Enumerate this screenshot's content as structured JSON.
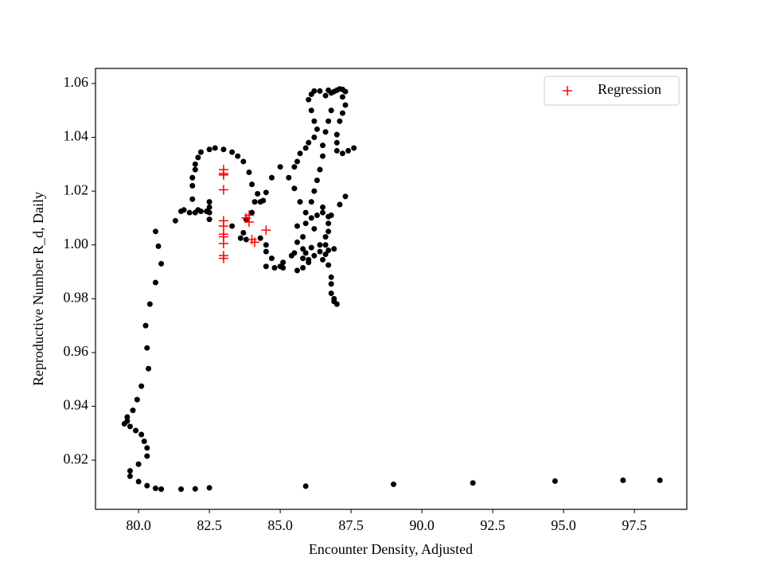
{
  "chart_data": {
    "type": "scatter",
    "xlabel": "Encounter Density, Adjusted",
    "ylabel": "Reproductive Number R_d, Daily",
    "xlim": [
      78.48,
      99.35
    ],
    "ylim": [
      0.9017,
      1.0656
    ],
    "xticks": [
      {
        "value": 80,
        "label": "80.0"
      },
      82.5,
      {
        "value": 85,
        "label": "85.0"
      },
      87.5,
      {
        "value": 90,
        "label": "90.0"
      },
      92.5,
      {
        "value": 95,
        "label": "95.0"
      },
      97.5
    ],
    "yticks": [
      0.92,
      0.94,
      0.96,
      0.98,
      {
        "value": 1,
        "label": "1.00"
      },
      1.02,
      1.04,
      1.06
    ],
    "legend": "upper right",
    "series": [
      {
        "color": "#000000",
        "marker": "o",
        "x": [
          98.4,
          97.1,
          94.7,
          91.8,
          89.0,
          85.9,
          82.5,
          82.0,
          81.5,
          80.8,
          80.6,
          80.3,
          80.0,
          79.7,
          79.7,
          80.0,
          80.3,
          80.3,
          80.2,
          80.1,
          79.9,
          79.7,
          79.5,
          79.6,
          79.6,
          79.8,
          79.95,
          80.1,
          80.35,
          80.3,
          80.25,
          80.4,
          80.6,
          80.8,
          80.7,
          80.6,
          81.3,
          81.5,
          81.6,
          81.8,
          82.0,
          82.2,
          82.4,
          82.5,
          82.5,
          82.5,
          82.5,
          82.1,
          81.9,
          81.9,
          81.9,
          82.0,
          82.0,
          82.1,
          82.2,
          82.5,
          82.7,
          83.0,
          83.3,
          83.5,
          83.7,
          83.9,
          84.0,
          84.2,
          84.4,
          84.5,
          84.3,
          84.1,
          84.0,
          83.8,
          83.7,
          83.6,
          83.3,
          83.8,
          84.3,
          84.5,
          84.5,
          84.7,
          84.5,
          84.8,
          85.0,
          85.1,
          85.1,
          85.4,
          85.5,
          85.8,
          85.9,
          85.8,
          86.0,
          85.6,
          85.8,
          86.0,
          86.2,
          86.4,
          86.6,
          86.7,
          86.5,
          86.7,
          86.8,
          86.8,
          86.8,
          86.9,
          87.0,
          86.9,
          86.6,
          86.6,
          86.7,
          86.7,
          86.8,
          86.5,
          86.3,
          86.1,
          86.2,
          85.6,
          85.8,
          85.6,
          85.9,
          85.9,
          85.7,
          85.5,
          85.3,
          85.0,
          84.7,
          85.5,
          85.6,
          85.7,
          85.9,
          86.0,
          86.2,
          86.3,
          86.2,
          86.1,
          86.0,
          86.1,
          86.2,
          86.4,
          86.6,
          86.8,
          87.0,
          87.1,
          87.2,
          87.3,
          87.2,
          87.3,
          87.2,
          87.1,
          87.0,
          87.0,
          87.0,
          87.2,
          87.4,
          87.6,
          86.7,
          86.9,
          86.8,
          86.7,
          86.6,
          86.5,
          86.5,
          86.4,
          86.3,
          86.2,
          86.1,
          86.5,
          86.7,
          87.3,
          87.1,
          86.4,
          86.1,
          86.9
        ],
        "y": [
          0.9125,
          0.9125,
          0.9122,
          0.9115,
          0.911,
          0.9103,
          0.9097,
          0.9093,
          0.9092,
          0.9092,
          0.9095,
          0.9105,
          0.912,
          0.914,
          0.916,
          0.9185,
          0.9215,
          0.9245,
          0.927,
          0.9295,
          0.931,
          0.9325,
          0.9335,
          0.9345,
          0.936,
          0.9385,
          0.9425,
          0.9475,
          0.954,
          0.9617,
          0.97,
          0.978,
          0.986,
          0.993,
          0.9995,
          1.005,
          1.009,
          1.0125,
          1.013,
          1.012,
          1.012,
          1.0125,
          1.0125,
          1.014,
          1.016,
          1.012,
          1.0095,
          1.013,
          1.017,
          1.022,
          1.025,
          1.028,
          1.03,
          1.0325,
          1.0345,
          1.0355,
          1.036,
          1.0355,
          1.0345,
          1.033,
          1.031,
          1.027,
          1.0225,
          1.019,
          1.0165,
          1.0195,
          1.016,
          1.016,
          1.012,
          1.0095,
          1.0045,
          1.0025,
          1.007,
          1.002,
          1.0025,
          1.0,
          0.9975,
          0.995,
          0.992,
          0.9915,
          0.992,
          0.9935,
          0.9915,
          0.996,
          0.997,
          0.9985,
          0.997,
          0.995,
          0.9935,
          0.9905,
          0.9915,
          0.9945,
          0.996,
          0.9975,
          0.9965,
          0.998,
          0.9945,
          0.9925,
          0.988,
          0.9855,
          0.982,
          0.98,
          0.978,
          0.979,
          1.0,
          1.003,
          1.005,
          1.008,
          1.011,
          1.012,
          1.011,
          1.01,
          1.006,
          1.007,
          1.003,
          1.001,
          1.008,
          1.012,
          1.016,
          1.021,
          1.025,
          1.029,
          1.025,
          1.029,
          1.031,
          1.034,
          1.036,
          1.038,
          1.04,
          1.043,
          1.046,
          1.05,
          1.054,
          1.056,
          1.0572,
          1.0572,
          1.0555,
          1.0565,
          1.0575,
          1.058,
          1.0578,
          1.057,
          1.055,
          1.052,
          1.049,
          1.046,
          1.041,
          1.038,
          1.035,
          1.034,
          1.035,
          1.036,
          1.0575,
          1.057,
          1.05,
          1.046,
          1.042,
          1.037,
          1.033,
          1.028,
          1.024,
          1.02,
          1.016,
          1.014,
          1.0105,
          1.018,
          1.015,
          1.0,
          0.999,
          0.9985
        ]
      },
      {
        "name": "Regression",
        "color": "#ff0000",
        "marker": "+",
        "x": [
          83.0,
          83.0,
          83.0,
          83.0,
          83.0,
          83.0,
          83.0,
          83.0,
          83.0,
          83.0,
          83.0,
          83.9,
          83.9,
          84.0,
          84.1,
          84.5,
          83.8
        ],
        "y": [
          1.028,
          1.0265,
          1.026,
          1.0205,
          1.009,
          1.007,
          1.004,
          1.003,
          1.0005,
          0.996,
          0.995,
          1.011,
          1.0085,
          1.002,
          1.001,
          1.0055,
          1.01
        ]
      }
    ]
  }
}
